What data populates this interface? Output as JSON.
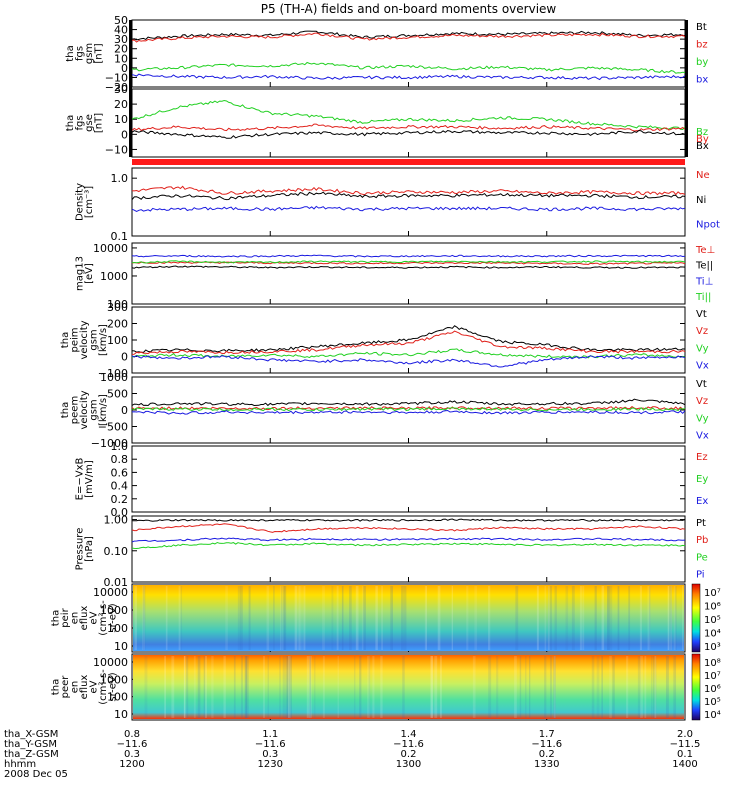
{
  "title": "P5 (TH-A) fields and on-board moments overview",
  "date_label": "2008 Dec 05",
  "colors": {
    "black": "#000000",
    "red": "#e0201a",
    "green": "#22d022",
    "blue": "#1a1ae0"
  },
  "xaxis": {
    "row_labels": [
      "tha_X-GSM",
      "tha_Y-GSM",
      "tha_Z-GSM",
      "hhmm"
    ],
    "columns": [
      {
        "X": "0.8",
        "Y": "−11.6",
        "Z": "0.3",
        "hhmm": "1200"
      },
      {
        "X": "1.1",
        "Y": "−11.6",
        "Z": "0.3",
        "hhmm": "1230"
      },
      {
        "X": "1.4",
        "Y": "−11.6",
        "Z": "0.2",
        "hhmm": "1300"
      },
      {
        "X": "1.7",
        "Y": "−11.6",
        "Z": "0.2",
        "hhmm": "1330"
      },
      {
        "X": "2.0",
        "Y": "−11.5",
        "Z": "0.1",
        "hhmm": "1400"
      }
    ]
  },
  "chart_data": [
    {
      "type": "line",
      "ylabel": [
        "tha",
        "fgs",
        "gsm",
        "[nT]"
      ],
      "yticks": [
        "50",
        "40",
        "30",
        "20",
        "10",
        "0",
        "−10",
        "−20"
      ],
      "ylim": [
        -20,
        50
      ],
      "x": [
        0,
        10,
        20,
        30,
        40,
        50,
        60,
        70,
        80,
        90,
        100,
        110,
        120
      ],
      "series": [
        {
          "name": "Bt",
          "color": "black",
          "values": [
            30,
            33,
            35,
            34,
            38,
            32,
            34,
            36,
            35,
            36,
            37,
            34,
            35
          ]
        },
        {
          "name": "bz",
          "color": "red",
          "values": [
            28,
            31,
            33,
            32,
            36,
            30,
            32,
            34,
            33,
            34,
            35,
            33,
            33
          ]
        },
        {
          "name": "by",
          "color": "green",
          "values": [
            -2,
            0,
            3,
            2,
            5,
            0,
            2,
            -1,
            1,
            -2,
            0,
            -2,
            -5
          ]
        },
        {
          "name": "bx",
          "color": "blue",
          "values": [
            -7,
            -9,
            -10,
            -9,
            -11,
            -10,
            -10,
            -9,
            -10,
            -10,
            -11,
            -10,
            -9
          ]
        }
      ]
    },
    {
      "type": "line",
      "ylabel": [
        "tha",
        "fgs",
        "gse",
        "[nT]"
      ],
      "yticks": [
        "30",
        "20",
        "10",
        "0",
        "−10"
      ],
      "ylim": [
        -15,
        30
      ],
      "x": [
        0,
        10,
        20,
        30,
        40,
        50,
        60,
        70,
        80,
        90,
        100,
        110,
        120
      ],
      "series": [
        {
          "name": "Bz",
          "color": "green",
          "values": [
            10,
            18,
            22,
            14,
            12,
            8,
            10,
            9,
            11,
            10,
            7,
            5,
            4
          ]
        },
        {
          "name": "By",
          "color": "red",
          "values": [
            3,
            5,
            3,
            4,
            6,
            4,
            5,
            5,
            4,
            5,
            4,
            3,
            4
          ]
        },
        {
          "name": "Bx",
          "color": "black",
          "values": [
            2,
            0,
            -2,
            0,
            1,
            0,
            1,
            2,
            1,
            1,
            0,
            2,
            0
          ]
        }
      ]
    },
    {
      "type": "line",
      "ylabel": [
        "Density",
        "[cm⁻³]"
      ],
      "yticks": [
        "1.0",
        "0.1"
      ],
      "ylim": [
        0.1,
        1.5
      ],
      "scale": "log",
      "x": [
        0,
        10,
        20,
        30,
        40,
        50,
        60,
        70,
        80,
        90,
        100,
        110,
        120
      ],
      "series": [
        {
          "name": "Ne",
          "color": "red",
          "values": [
            0.6,
            0.7,
            0.55,
            0.6,
            0.65,
            0.55,
            0.58,
            0.57,
            0.6,
            0.55,
            0.58,
            0.55,
            0.55
          ]
        },
        {
          "name": "Ni",
          "color": "black",
          "values": [
            0.45,
            0.5,
            0.45,
            0.5,
            0.55,
            0.48,
            0.5,
            0.5,
            0.52,
            0.5,
            0.5,
            0.47,
            0.48
          ]
        },
        {
          "name": "Npot",
          "color": "blue",
          "values": [
            0.28,
            0.29,
            0.3,
            0.29,
            0.31,
            0.29,
            0.3,
            0.3,
            0.3,
            0.29,
            0.3,
            0.29,
            0.3
          ]
        }
      ]
    },
    {
      "type": "line",
      "ylabel": [
        "mag13",
        "[eV]"
      ],
      "yticks": [
        "10000",
        "1000",
        "100"
      ],
      "ylim": [
        100,
        15000
      ],
      "scale": "log",
      "x": [
        0,
        10,
        20,
        30,
        40,
        50,
        60,
        70,
        80,
        90,
        100,
        110,
        120
      ],
      "series": [
        {
          "name": "Te⊥",
          "color": "red",
          "values": [
            3000,
            3000,
            3000,
            2900,
            2900,
            2800,
            2900,
            2900,
            2900,
            2800,
            2700,
            2800,
            2900
          ]
        },
        {
          "name": "Te||",
          "color": "black",
          "values": [
            2000,
            2200,
            2100,
            2000,
            2100,
            2000,
            2000,
            2100,
            2000,
            2100,
            2000,
            2000,
            2000
          ]
        },
        {
          "name": "Ti⊥",
          "color": "blue",
          "values": [
            5000,
            5200,
            5000,
            5100,
            5300,
            5000,
            5100,
            5200,
            5100,
            5100,
            5200,
            5200,
            5100
          ]
        },
        {
          "name": "Ti||",
          "color": "green",
          "values": [
            3000,
            3300,
            3100,
            3100,
            3300,
            3200,
            3200,
            3300,
            3200,
            3200,
            3300,
            3200,
            3200
          ]
        }
      ]
    },
    {
      "type": "line",
      "ylabel": [
        "tha",
        "peim",
        "velocity",
        "gsm",
        "[km/s]"
      ],
      "yticks": [
        "300",
        "200",
        "100",
        "0",
        "−100"
      ],
      "ylim": [
        -100,
        300
      ],
      "x": [
        0,
        10,
        20,
        30,
        40,
        50,
        60,
        70,
        80,
        90,
        100,
        110,
        120
      ],
      "series": [
        {
          "name": "Vt",
          "color": "black",
          "values": [
            30,
            40,
            35,
            40,
            60,
            80,
            100,
            180,
            90,
            70,
            40,
            40,
            45
          ]
        },
        {
          "name": "Vz",
          "color": "red",
          "values": [
            20,
            30,
            25,
            30,
            40,
            70,
            80,
            150,
            60,
            50,
            30,
            30,
            30
          ]
        },
        {
          "name": "Vy",
          "color": "green",
          "values": [
            0,
            10,
            0,
            10,
            0,
            20,
            10,
            40,
            10,
            0,
            0,
            10,
            0
          ]
        },
        {
          "name": "Vx",
          "color": "blue",
          "values": [
            0,
            -10,
            0,
            -20,
            -30,
            -20,
            -40,
            -20,
            -60,
            -20,
            0,
            -10,
            0
          ]
        }
      ]
    },
    {
      "type": "line",
      "ylabel": [
        "tha",
        "peem",
        "velocity",
        "gsm",
        "[km/s]"
      ],
      "yticks": [
        "1000",
        "500",
        "0",
        "−500",
        "−1000"
      ],
      "ylim": [
        -1000,
        1000
      ],
      "x": [
        0,
        10,
        20,
        30,
        40,
        50,
        60,
        70,
        80,
        90,
        100,
        110,
        120
      ],
      "series": [
        {
          "name": "Vt",
          "color": "black",
          "values": [
            150,
            200,
            180,
            170,
            200,
            180,
            190,
            250,
            180,
            190,
            200,
            300,
            180
          ]
        },
        {
          "name": "Vz",
          "color": "red",
          "values": [
            50,
            60,
            50,
            50,
            60,
            60,
            50,
            70,
            60,
            50,
            60,
            70,
            50
          ]
        },
        {
          "name": "Vy",
          "color": "green",
          "values": [
            20,
            30,
            10,
            20,
            10,
            30,
            20,
            40,
            20,
            10,
            20,
            30,
            20
          ]
        },
        {
          "name": "Vx",
          "color": "blue",
          "values": [
            -50,
            -100,
            -60,
            -80,
            -70,
            -60,
            -80,
            -50,
            -90,
            -70,
            -60,
            -80,
            -60
          ]
        }
      ]
    },
    {
      "type": "line",
      "ylabel": [
        "E=−VxB",
        "[mV/m]"
      ],
      "yticks": [
        "1.0",
        "0.8",
        "0.6",
        "0.4",
        "0.2",
        "0.0"
      ],
      "ylim": [
        0,
        1
      ],
      "x": [],
      "series": [
        {
          "name": "Ez",
          "color": "red",
          "values": []
        },
        {
          "name": "Ey",
          "color": "green",
          "values": []
        },
        {
          "name": "Ex",
          "color": "blue",
          "values": []
        }
      ]
    },
    {
      "type": "line",
      "ylabel": [
        "Pressure",
        "[nPa]"
      ],
      "yticks": [
        "1.00",
        "0.10",
        "0.01"
      ],
      "ylim": [
        0.01,
        1.3
      ],
      "scale": "log",
      "x": [
        0,
        10,
        20,
        30,
        40,
        50,
        60,
        70,
        80,
        90,
        100,
        110,
        120
      ],
      "series": [
        {
          "name": "Pt",
          "color": "black",
          "values": [
            0.9,
            0.95,
            0.95,
            0.95,
            0.95,
            0.95,
            0.95,
            1.0,
            0.95,
            0.95,
            0.95,
            0.95,
            0.95
          ]
        },
        {
          "name": "Pb",
          "color": "red",
          "values": [
            0.45,
            0.6,
            0.7,
            0.4,
            0.5,
            0.55,
            0.5,
            0.45,
            0.55,
            0.5,
            0.5,
            0.6,
            0.5
          ]
        },
        {
          "name": "Pe",
          "color": "green",
          "values": [
            0.12,
            0.15,
            0.18,
            0.15,
            0.17,
            0.15,
            0.16,
            0.17,
            0.16,
            0.15,
            0.16,
            0.15,
            0.15
          ]
        },
        {
          "name": "Pi",
          "color": "blue",
          "values": [
            0.2,
            0.22,
            0.25,
            0.22,
            0.24,
            0.23,
            0.23,
            0.24,
            0.24,
            0.23,
            0.24,
            0.23,
            0.22
          ]
        }
      ]
    },
    {
      "type": "heatmap",
      "ylabel": [
        "tha",
        "peir",
        "en",
        "eflux",
        "eV",
        "(cm²-s-",
        "sr-eV)"
      ],
      "yticks": [
        "10000",
        "1000",
        "100",
        "10"
      ],
      "colorbar_ticks": [
        "10⁷",
        "10⁶",
        "10⁵",
        "10⁴",
        "10³"
      ]
    },
    {
      "type": "heatmap",
      "ylabel": [
        "tha",
        "peer",
        "en",
        "eflux",
        "eV",
        "(cm²-s-",
        "sr-eV)"
      ],
      "yticks": [
        "10000",
        "1000",
        "100",
        "10"
      ],
      "colorbar_ticks": [
        "10⁸",
        "10⁷",
        "10⁶",
        "10⁵",
        "10⁴"
      ]
    }
  ]
}
